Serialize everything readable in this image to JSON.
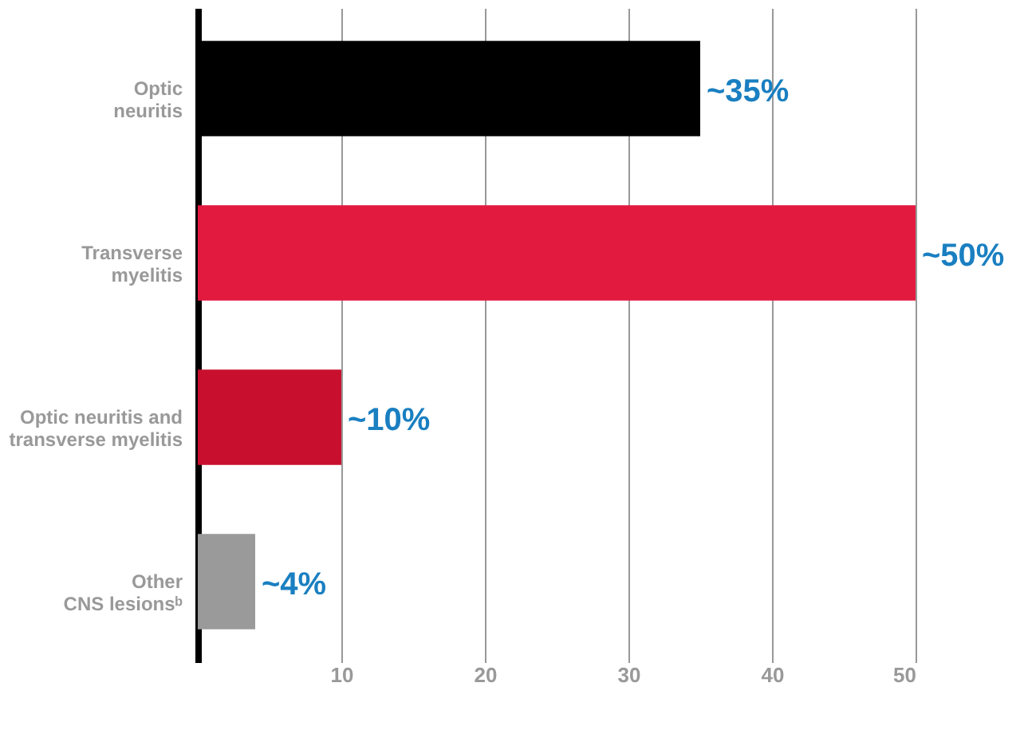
{
  "chart_data": {
    "type": "bar",
    "orientation": "horizontal",
    "categories": [
      "Optic\nneuritis",
      "Transverse\nmyelitis",
      "Optic neuritis and\ntransverse myelitis",
      "Other\nCNS lesionsᵇ"
    ],
    "values": [
      35,
      50,
      10,
      4
    ],
    "colors": [
      "#000000",
      "#e31a3f",
      "#c8102e",
      "#9a9a9a"
    ],
    "value_labels": [
      "~35%",
      "~50%",
      "~10%",
      "~4%"
    ],
    "xlim": [
      0,
      50
    ],
    "xticks": [
      10,
      20,
      30,
      40,
      50
    ],
    "grid": "x"
  }
}
